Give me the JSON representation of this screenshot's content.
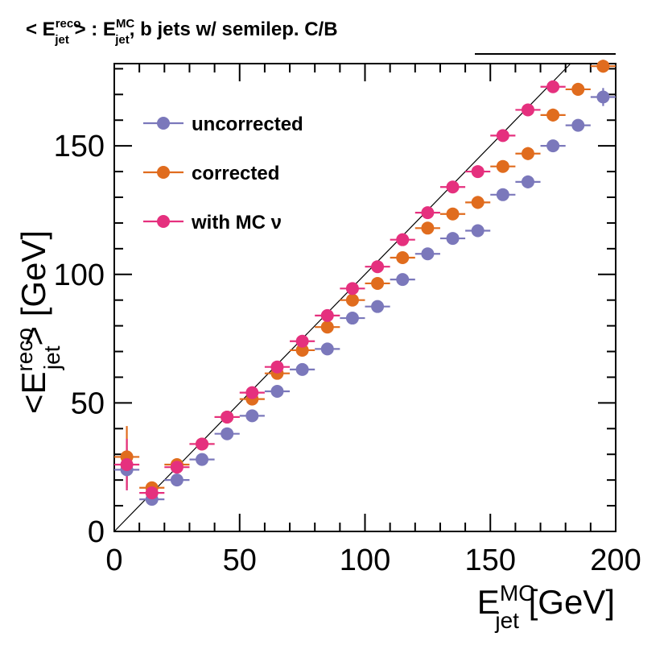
{
  "title": {
    "open": "< E",
    "sup1": "reco",
    "sub1": "jet",
    "mid": " > : E",
    "sup2": "MC",
    "sub2": "jet",
    "rest": ", b jets w/ semilep. C/B"
  },
  "chart_data": {
    "type": "scatter",
    "xlabel": {
      "base": "E",
      "sup": "MC",
      "sub": "jet",
      "unit": " [GeV]"
    },
    "ylabel": {
      "open": "<E",
      "sup": "reco",
      "sub": "jet",
      "close": "> [GeV]"
    },
    "xlim": [
      0,
      200
    ],
    "ylim": [
      0,
      182
    ],
    "xticks": [
      0,
      50,
      100,
      150,
      200
    ],
    "yticks": [
      0,
      50,
      100,
      150
    ],
    "xtick_labels": [
      "0",
      "50",
      "100",
      "150",
      "200"
    ],
    "ytick_labels": [
      "0",
      "50",
      "100",
      "150"
    ],
    "diagonal": [
      [
        0,
        0
      ],
      [
        182,
        182
      ]
    ],
    "legend_position": "top-left",
    "series": [
      {
        "name": "uncorrected",
        "color": "#7b78bb",
        "x": [
          5,
          15,
          25,
          35,
          45,
          55,
          65,
          75,
          85,
          95,
          105,
          115,
          125,
          135,
          145,
          155,
          165,
          175,
          185,
          195
        ],
        "y": [
          24,
          12.5,
          20,
          28,
          38,
          45,
          54.5,
          63,
          71,
          83,
          87.5,
          98,
          108,
          114,
          117,
          131,
          136,
          150,
          158,
          169
        ],
        "yerr": [
          8,
          2,
          1.5,
          1.2,
          1.2,
          1.2,
          1.2,
          1.2,
          1.2,
          1.2,
          1.2,
          1.2,
          1.2,
          1.2,
          2.5,
          1.5,
          2.5,
          2,
          2,
          3.5
        ]
      },
      {
        "name": "corrected",
        "color": "#e06c1e",
        "x": [
          5,
          15,
          25,
          35,
          45,
          55,
          65,
          75,
          85,
          95,
          105,
          115,
          125,
          135,
          145,
          155,
          165,
          175,
          185,
          195
        ],
        "y": [
          29,
          17,
          26,
          34,
          44.5,
          51.5,
          61.5,
          70.5,
          79.5,
          90,
          96.5,
          106.5,
          118,
          123.5,
          128,
          142,
          147,
          162,
          172,
          181
        ],
        "yerr": [
          12,
          2,
          1.5,
          1.2,
          1.2,
          1.2,
          1.2,
          1.2,
          1.2,
          1.2,
          1.2,
          1.2,
          1.2,
          1.2,
          2.5,
          1.5,
          2.5,
          2.5,
          2.5,
          2.5
        ]
      },
      {
        "name": "with MC ν",
        "color": "#e5307e",
        "x": [
          5,
          15,
          25,
          35,
          45,
          55,
          65,
          75,
          85,
          95,
          105,
          115,
          125,
          135,
          145,
          155,
          165,
          175
        ],
        "y": [
          26,
          15,
          25,
          34,
          44.5,
          54,
          64,
          74,
          84,
          94.5,
          103,
          113.5,
          124,
          134,
          140,
          154,
          164,
          173
        ],
        "yerr": [
          10,
          2,
          1.5,
          1.2,
          1.2,
          1.2,
          1.2,
          1.2,
          1.2,
          1.2,
          1.2,
          1.2,
          1.2,
          1.2,
          1.5,
          1.5,
          1.5,
          1.5
        ]
      }
    ]
  }
}
